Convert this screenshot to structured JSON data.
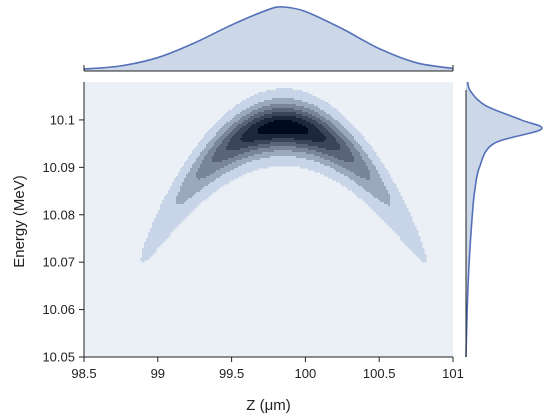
{
  "chart_data": {
    "type": "joint-contour",
    "title": "",
    "xlabel": "Z (μm)",
    "ylabel": "Energy (MeV)",
    "xlim": [
      98.5,
      101
    ],
    "ylim": [
      10.05,
      10.108
    ],
    "xticks": [
      98.5,
      99,
      99.5,
      100,
      100.5,
      101
    ],
    "xtick_labels": [
      "98.5",
      "99",
      "99.5",
      "100",
      "100.5",
      "101"
    ],
    "yticks": [
      10.05,
      10.06,
      10.07,
      10.08,
      10.09,
      10.1
    ],
    "ytick_labels": [
      "10.05",
      "10.06",
      "10.07",
      "10.08",
      "10.09",
      "10.1"
    ],
    "grid": false,
    "density_model": {
      "description": "banana-shaped correlated distribution",
      "z_mean": 99.85,
      "z_sigma": 0.38,
      "energy_peak": 10.0985,
      "energy_curvature": 0.03,
      "energy_sigma": 0.0032
    },
    "contour_levels": [
      0.04,
      0.16,
      0.3,
      0.45,
      0.6,
      0.75,
      0.9
    ],
    "marginal_top": {
      "type": "area",
      "x": [
        98.5,
        98.75,
        99.0,
        99.25,
        99.5,
        99.75,
        99.85,
        100.0,
        100.25,
        100.5,
        100.75,
        101.0
      ],
      "values": [
        0.03,
        0.08,
        0.21,
        0.44,
        0.72,
        0.96,
        1.0,
        0.93,
        0.66,
        0.35,
        0.13,
        0.04
      ]
    },
    "marginal_right": {
      "type": "area",
      "y": [
        10.05,
        10.06,
        10.07,
        10.08,
        10.085,
        10.09,
        10.095,
        10.098,
        10.1,
        10.103,
        10.106,
        10.108
      ],
      "values": [
        0.0,
        0.015,
        0.04,
        0.08,
        0.11,
        0.17,
        0.35,
        0.95,
        0.7,
        0.25,
        0.06,
        0.02
      ]
    },
    "colors": {
      "panel_background": "#eaf0f5",
      "fill_low": "#c8d5e8",
      "fill_high": "#000a1e",
      "marginal_fill": "#ccd7e8",
      "marginal_line": "#5470b8",
      "axis": "#222222"
    }
  }
}
